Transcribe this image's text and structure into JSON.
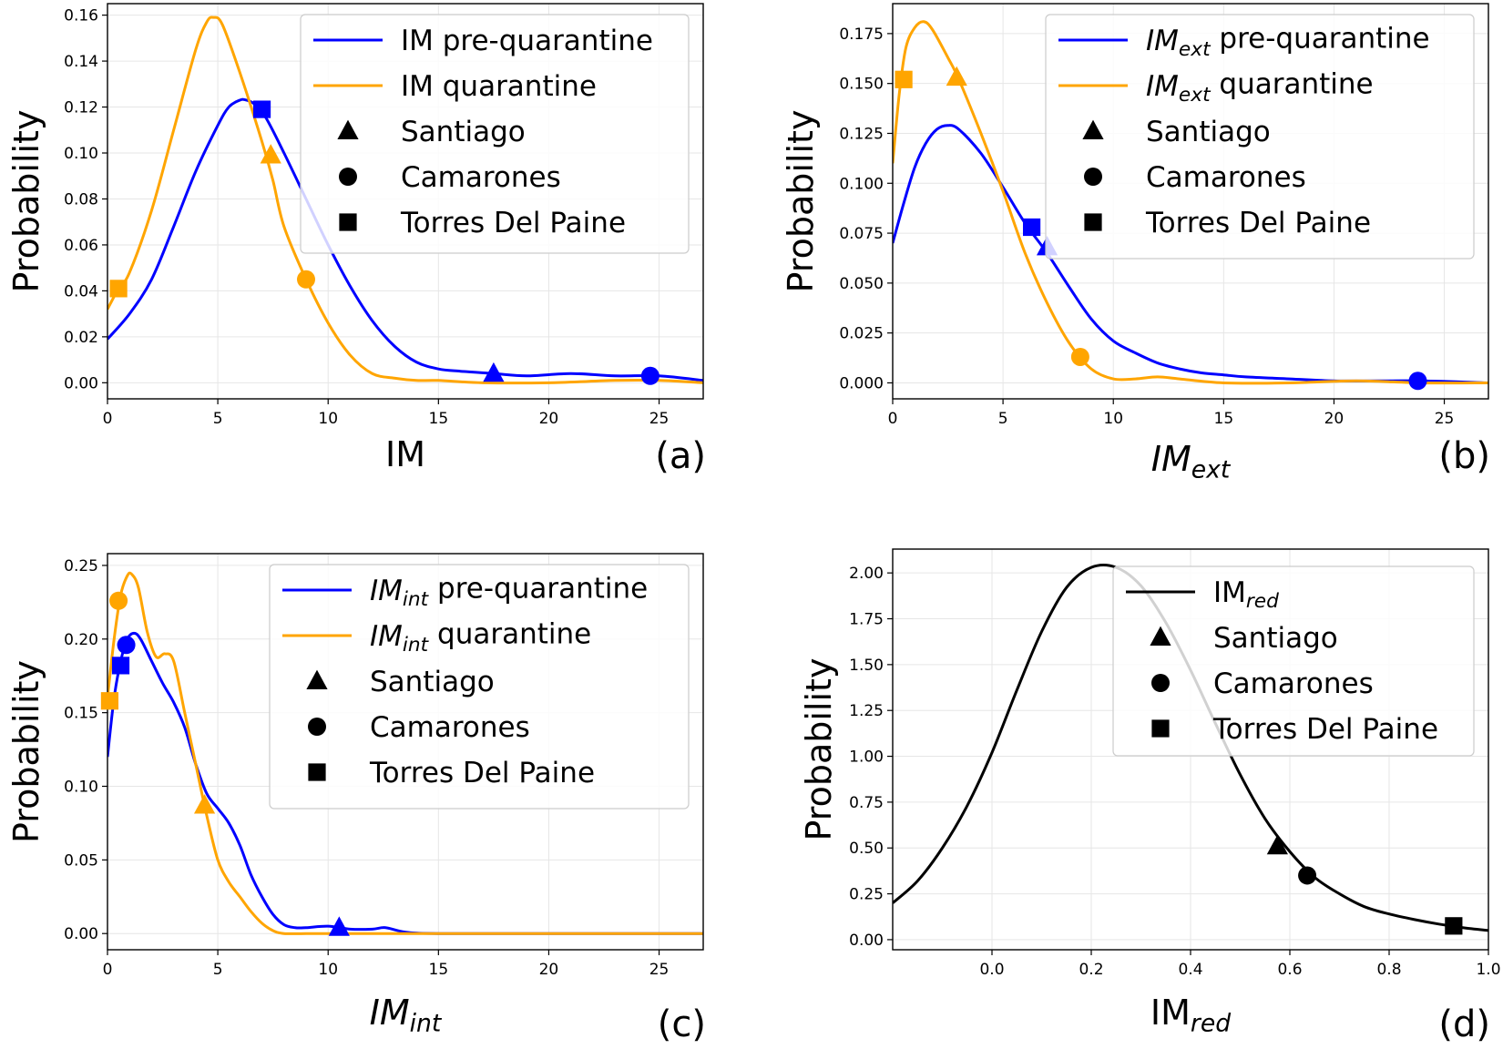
{
  "chart_data": [
    {
      "id": "a",
      "type": "line",
      "panel_label": "(a)",
      "xlabel": "IM",
      "ylabel": "Probability",
      "xlim": [
        0,
        27
      ],
      "ylim": [
        -0.007,
        0.165
      ],
      "xticks": [
        0,
        5,
        10,
        15,
        20,
        25
      ],
      "xtick_labels": [
        "0",
        "5",
        "10",
        "15",
        "20",
        "25"
      ],
      "yticks": [
        0,
        0.02,
        0.04,
        0.06,
        0.08,
        0.1,
        0.12,
        0.14,
        0.16
      ],
      "ytick_labels": [
        "0.00",
        "0.02",
        "0.04",
        "0.06",
        "0.08",
        "0.10",
        "0.12",
        "0.14",
        "0.16"
      ],
      "series": [
        {
          "name": "IM pre-quarantine",
          "color": "#0000ff",
          "x": [
            0,
            1,
            2,
            3,
            4,
            5,
            5.5,
            6,
            6.3,
            6.7,
            7.2,
            8,
            9,
            10,
            11,
            12,
            13,
            14,
            15,
            16,
            17.5,
            19,
            21,
            23,
            25,
            27
          ],
          "y": [
            0.019,
            0.03,
            0.045,
            0.068,
            0.092,
            0.112,
            0.12,
            0.123,
            0.123,
            0.121,
            0.115,
            0.1,
            0.08,
            0.06,
            0.042,
            0.027,
            0.016,
            0.009,
            0.006,
            0.005,
            0.004,
            0.003,
            0.004,
            0.003,
            0.003,
            0.001
          ]
        },
        {
          "name": "IM quarantine",
          "color": "#ffa500",
          "x": [
            0,
            0.5,
            1,
            2,
            3,
            4,
            4.5,
            4.8,
            5.2,
            6,
            7,
            7.5,
            8,
            9,
            10,
            11,
            12,
            13,
            14,
            15,
            17,
            20,
            23,
            25,
            27
          ],
          "y": [
            0.032,
            0.041,
            0.048,
            0.075,
            0.11,
            0.145,
            0.157,
            0.159,
            0.156,
            0.135,
            0.105,
            0.088,
            0.068,
            0.045,
            0.026,
            0.012,
            0.004,
            0.002,
            0.001,
            0.001,
            0.0,
            0.0,
            0.001,
            0.001,
            0.0
          ]
        }
      ],
      "markers": [
        {
          "series": "IM pre-quarantine",
          "city": "Santiago",
          "shape": "triangle",
          "x": 17.5,
          "y": 0.004
        },
        {
          "series": "IM pre-quarantine",
          "city": "Camarones",
          "shape": "circle",
          "x": 24.6,
          "y": 0.003
        },
        {
          "series": "IM pre-quarantine",
          "city": "Torres Del Paine",
          "shape": "square",
          "x": 7.0,
          "y": 0.119
        },
        {
          "series": "IM quarantine",
          "city": "Santiago",
          "shape": "triangle",
          "x": 7.4,
          "y": 0.099
        },
        {
          "series": "IM quarantine",
          "city": "Camarones",
          "shape": "circle",
          "x": 9.0,
          "y": 0.045
        },
        {
          "series": "IM quarantine",
          "city": "Torres Del Paine",
          "shape": "square",
          "x": 0.5,
          "y": 0.041
        }
      ],
      "legend": [
        {
          "kind": "line",
          "color": "#0000ff",
          "label": "IM pre-quarantine"
        },
        {
          "kind": "line",
          "color": "#ffa500",
          "label": "IM quarantine"
        },
        {
          "kind": "marker",
          "shape": "triangle",
          "label": "Santiago"
        },
        {
          "kind": "marker",
          "shape": "circle",
          "label": "Camarones"
        },
        {
          "kind": "marker",
          "shape": "square",
          "label": "Torres Del Paine"
        }
      ],
      "legend_location": "upper right"
    },
    {
      "id": "b",
      "type": "line",
      "panel_label": "(b)",
      "xlabel": "IM",
      "xlabel_sub": "ext",
      "ylabel": "Probability",
      "xlim": [
        0,
        27
      ],
      "ylim": [
        -0.008,
        0.19
      ],
      "xticks": [
        0,
        5,
        10,
        15,
        20,
        25
      ],
      "xtick_labels": [
        "0",
        "5",
        "10",
        "15",
        "20",
        "25"
      ],
      "yticks": [
        0,
        0.025,
        0.05,
        0.075,
        0.1,
        0.125,
        0.15,
        0.175
      ],
      "ytick_labels": [
        "0.000",
        "0.025",
        "0.050",
        "0.075",
        "0.100",
        "0.125",
        "0.150",
        "0.175"
      ],
      "series": [
        {
          "name": "IMext pre-quarantine",
          "color": "#0000ff",
          "x": [
            0,
            0.5,
            1,
            1.5,
            2,
            2.5,
            3,
            4,
            5,
            6,
            7,
            8,
            9,
            10,
            11,
            12,
            13,
            14,
            15,
            16,
            18,
            20,
            22,
            24,
            27
          ],
          "y": [
            0.07,
            0.09,
            0.108,
            0.12,
            0.127,
            0.129,
            0.127,
            0.115,
            0.098,
            0.08,
            0.065,
            0.048,
            0.032,
            0.021,
            0.015,
            0.01,
            0.007,
            0.005,
            0.004,
            0.003,
            0.002,
            0.001,
            0.001,
            0.001,
            0.0
          ]
        },
        {
          "name": "IMext quarantine",
          "color": "#ffa500",
          "x": [
            0,
            0.3,
            0.6,
            1,
            1.4,
            1.8,
            2.5,
            3,
            4,
            5,
            6,
            7,
            8,
            9,
            10,
            11,
            12,
            13,
            15,
            18,
            21,
            24,
            27
          ],
          "y": [
            0.11,
            0.145,
            0.168,
            0.178,
            0.181,
            0.177,
            0.163,
            0.152,
            0.125,
            0.096,
            0.065,
            0.04,
            0.02,
            0.007,
            0.002,
            0.002,
            0.003,
            0.002,
            0.0,
            0.0,
            0.001,
            0.0,
            0.0
          ]
        }
      ],
      "markers": [
        {
          "series": "IMext pre-quarantine",
          "city": "Santiago",
          "shape": "triangle",
          "x": 7.0,
          "y": 0.068
        },
        {
          "series": "IMext pre-quarantine",
          "city": "Camarones",
          "shape": "circle",
          "x": 23.8,
          "y": 0.001
        },
        {
          "series": "IMext pre-quarantine",
          "city": "Torres Del Paine",
          "shape": "square",
          "x": 6.3,
          "y": 0.078
        },
        {
          "series": "IMext quarantine",
          "city": "Santiago",
          "shape": "triangle",
          "x": 2.9,
          "y": 0.153
        },
        {
          "series": "IMext quarantine",
          "city": "Camarones",
          "shape": "circle",
          "x": 8.5,
          "y": 0.013
        },
        {
          "series": "IMext quarantine",
          "city": "Torres Del Paine",
          "shape": "square",
          "x": 0.5,
          "y": 0.152
        }
      ],
      "legend": [
        {
          "kind": "line",
          "color": "#0000ff",
          "label": "IM",
          "sub": "ext",
          "rest": " pre-quarantine"
        },
        {
          "kind": "line",
          "color": "#ffa500",
          "label": "IM",
          "sub": "ext",
          "rest": " quarantine"
        },
        {
          "kind": "marker",
          "shape": "triangle",
          "label": "Santiago"
        },
        {
          "kind": "marker",
          "shape": "circle",
          "label": "Camarones"
        },
        {
          "kind": "marker",
          "shape": "square",
          "label": "Torres Del Paine"
        }
      ],
      "legend_location": "upper right"
    },
    {
      "id": "c",
      "type": "line",
      "panel_label": "(c)",
      "xlabel": "IM",
      "xlabel_sub": "int",
      "ylabel": "Probability",
      "xlim": [
        0,
        27
      ],
      "ylim": [
        -0.011,
        0.258
      ],
      "xticks": [
        0,
        5,
        10,
        15,
        20,
        25
      ],
      "xtick_labels": [
        "0",
        "5",
        "10",
        "15",
        "20",
        "25"
      ],
      "yticks": [
        0,
        0.05,
        0.1,
        0.15,
        0.2,
        0.25
      ],
      "ytick_labels": [
        "0.00",
        "0.05",
        "0.10",
        "0.15",
        "0.20",
        "0.25"
      ],
      "series": [
        {
          "name": "IMint pre-quarantine",
          "color": "#0000ff",
          "x": [
            0,
            0.3,
            0.6,
            0.9,
            1.2,
            1.5,
            2,
            2.5,
            3,
            3.5,
            4,
            4.5,
            5,
            5.5,
            6,
            6.5,
            7,
            7.5,
            8,
            8.5,
            9,
            10,
            11,
            12,
            12.6,
            13.5,
            15,
            20,
            27
          ],
          "y": [
            0.12,
            0.16,
            0.185,
            0.2,
            0.204,
            0.2,
            0.185,
            0.17,
            0.157,
            0.14,
            0.115,
            0.095,
            0.085,
            0.075,
            0.06,
            0.04,
            0.025,
            0.013,
            0.006,
            0.004,
            0.004,
            0.005,
            0.003,
            0.003,
            0.004,
            0.001,
            0.0,
            0.0,
            0.0
          ]
        },
        {
          "name": "IMint quarantine",
          "color": "#ffa500",
          "x": [
            0,
            0.3,
            0.6,
            0.9,
            1.1,
            1.4,
            1.8,
            2.2,
            2.6,
            3,
            3.5,
            4,
            4.5,
            5,
            5.5,
            6,
            6.5,
            7,
            7.5,
            8,
            9,
            10,
            15,
            20,
            27
          ],
          "y": [
            0.16,
            0.2,
            0.23,
            0.243,
            0.244,
            0.235,
            0.205,
            0.188,
            0.19,
            0.185,
            0.15,
            0.115,
            0.08,
            0.05,
            0.035,
            0.025,
            0.015,
            0.007,
            0.002,
            0.0,
            0.0,
            0.0,
            0.0,
            0.0,
            0.0
          ]
        }
      ],
      "markers": [
        {
          "series": "IMint pre-quarantine",
          "city": "Santiago",
          "shape": "triangle",
          "x": 10.5,
          "y": 0.004
        },
        {
          "series": "IMint pre-quarantine",
          "city": "Camarones",
          "shape": "circle",
          "x": 0.85,
          "y": 0.196
        },
        {
          "series": "IMint pre-quarantine",
          "city": "Torres Del Paine",
          "shape": "square",
          "x": 0.6,
          "y": 0.182
        },
        {
          "series": "IMint quarantine",
          "city": "Santiago",
          "shape": "triangle",
          "x": 4.4,
          "y": 0.087
        },
        {
          "series": "IMint quarantine",
          "city": "Camarones",
          "shape": "circle",
          "x": 0.5,
          "y": 0.226
        },
        {
          "series": "IMint quarantine",
          "city": "Torres Del Paine",
          "shape": "square",
          "x": 0.1,
          "y": 0.158
        }
      ],
      "legend": [
        {
          "kind": "line",
          "color": "#0000ff",
          "label": "IM",
          "sub": "int",
          "rest": " pre-quarantine"
        },
        {
          "kind": "line",
          "color": "#ffa500",
          "label": "IM",
          "sub": "int",
          "rest": " quarantine"
        },
        {
          "kind": "marker",
          "shape": "triangle",
          "label": "Santiago"
        },
        {
          "kind": "marker",
          "shape": "circle",
          "label": "Camarones"
        },
        {
          "kind": "marker",
          "shape": "square",
          "label": "Torres Del Paine"
        }
      ],
      "legend_location": "upper right"
    },
    {
      "id": "d",
      "type": "line",
      "panel_label": "(d)",
      "xlabel": "IM",
      "xlabel_sub": "red",
      "ylabel": "Probability",
      "xlim": [
        -0.2,
        1.0
      ],
      "ylim": [
        -0.055,
        2.13
      ],
      "xticks": [
        0.0,
        0.2,
        0.4,
        0.6,
        0.8,
        1.0
      ],
      "xtick_labels": [
        "0.0",
        "0.2",
        "0.4",
        "0.6",
        "0.8",
        "1.0"
      ],
      "yticks": [
        0,
        0.25,
        0.5,
        0.75,
        1.0,
        1.25,
        1.5,
        1.75,
        2.0
      ],
      "ytick_labels": [
        "0.00",
        "0.25",
        "0.50",
        "0.75",
        "1.00",
        "1.25",
        "1.50",
        "1.75",
        "2.00"
      ],
      "series": [
        {
          "name": "IMred",
          "color": "#000000",
          "x": [
            -0.2,
            -0.15,
            -0.1,
            -0.05,
            0.0,
            0.05,
            0.1,
            0.15,
            0.2,
            0.25,
            0.3,
            0.35,
            0.4,
            0.45,
            0.5,
            0.55,
            0.6,
            0.65,
            0.7,
            0.75,
            0.8,
            0.85,
            0.9,
            0.95,
            1.0
          ],
          "y": [
            0.2,
            0.32,
            0.5,
            0.73,
            1.02,
            1.36,
            1.68,
            1.92,
            2.03,
            2.03,
            1.93,
            1.73,
            1.47,
            1.18,
            0.9,
            0.66,
            0.48,
            0.34,
            0.25,
            0.18,
            0.14,
            0.11,
            0.085,
            0.065,
            0.05
          ]
        }
      ],
      "markers": [
        {
          "series": "IMred",
          "city": "Santiago",
          "shape": "triangle",
          "x": 0.575,
          "y": 0.51
        },
        {
          "series": "IMred",
          "city": "Camarones",
          "shape": "circle",
          "x": 0.635,
          "y": 0.35
        },
        {
          "series": "IMred",
          "city": "Torres Del Paine",
          "shape": "square",
          "x": 0.93,
          "y": 0.075
        }
      ],
      "legend": [
        {
          "kind": "line",
          "color": "#000000",
          "label": "IM",
          "sub": "red",
          "rest": "",
          "sub_italic": true
        },
        {
          "kind": "marker",
          "shape": "triangle",
          "label": "Santiago"
        },
        {
          "kind": "marker",
          "shape": "circle",
          "label": "Camarones"
        },
        {
          "kind": "marker",
          "shape": "square",
          "label": "Torres Del Paine"
        }
      ],
      "legend_location": "upper right"
    }
  ]
}
